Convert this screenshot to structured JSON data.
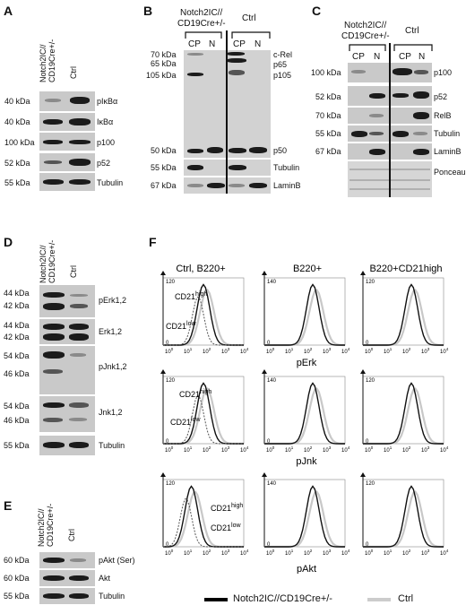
{
  "panels": {
    "A": {
      "letter": "A",
      "header": [
        "Notch2IC//",
        "CD19Cre+/-",
        "Ctrl"
      ],
      "mw": [
        "40 kDa",
        "40 kDa",
        "100 kDa",
        "52 kDa",
        "55 kDa"
      ],
      "proteins": [
        "pIκBα",
        "IκBα",
        "p100",
        "p52",
        "Tubulin"
      ]
    },
    "B": {
      "letter": "B",
      "group1": "Notch2IC//",
      "group1b": "CD19Cre+/-",
      "group2": "Ctrl",
      "lanes": [
        "CP",
        "N",
        "CP",
        "N"
      ],
      "mw": [
        "70 kDa",
        "65 kDa",
        "105 kDa",
        "50 kDa",
        "55 kDa",
        "67 kDa"
      ],
      "proteins": [
        "c-Rel",
        "p65",
        "p105",
        "p50",
        "Tubulin",
        "LaminB"
      ]
    },
    "C": {
      "letter": "C",
      "group1": "Notch2IC//",
      "group1b": "CD19Cre+/-",
      "group2": "Ctrl",
      "lanes": [
        "CP",
        "N",
        "CP",
        "N"
      ],
      "mw": [
        "100 kDa",
        "52 kDa",
        "70 kDa",
        "55 kDa",
        "67 kDa"
      ],
      "proteins": [
        "p100",
        "p52",
        "RelB",
        "Tubulin",
        "LaminB",
        "Ponceau"
      ]
    },
    "D": {
      "letter": "D",
      "header": [
        "Notch2IC//",
        "CD19Cre+/-",
        "Ctrl"
      ],
      "mw": [
        "44 kDa",
        "42 kDa",
        "44 kDa",
        "42 kDa",
        "54 kDa",
        "46 kDa",
        "54 kDa",
        "46 kDa",
        "55 kDa"
      ],
      "proteins": [
        "pErk1,2",
        "Erk1,2",
        "pJnk1,2",
        "Jnk1,2",
        "Tubulin"
      ]
    },
    "E": {
      "letter": "E",
      "header": [
        "Notch2IC//",
        "CD19Cre+/-",
        "Ctrl"
      ],
      "mw": [
        "60 kDa",
        "60 kDa",
        "55 kDa"
      ],
      "proteins": [
        "pAkt (Ser)",
        "Akt",
        "Tubulin"
      ]
    },
    "F": {
      "letter": "F",
      "col_titles": [
        "Ctrl, B220+",
        "B220+",
        "B220+CD21high"
      ],
      "row_labels": [
        "pErk",
        "pJnk",
        "pAkt"
      ],
      "ytick_top": [
        "120",
        "140",
        "120"
      ],
      "ytick_zero": "0",
      "xticks": [
        "10",
        "10",
        "10",
        "10",
        "10"
      ],
      "xexp": [
        "0",
        "1",
        "2",
        "3",
        "4"
      ],
      "annot_high": "CD21",
      "annot_high_sup": "high",
      "annot_low": "CD21",
      "annot_low_sup": "low",
      "legend": {
        "mutant": "Notch2IC//CD19Cre+/-",
        "ctrl": "Ctrl",
        "mutant_color": "#000000",
        "ctrl_color": "#cccccc"
      }
    }
  }
}
